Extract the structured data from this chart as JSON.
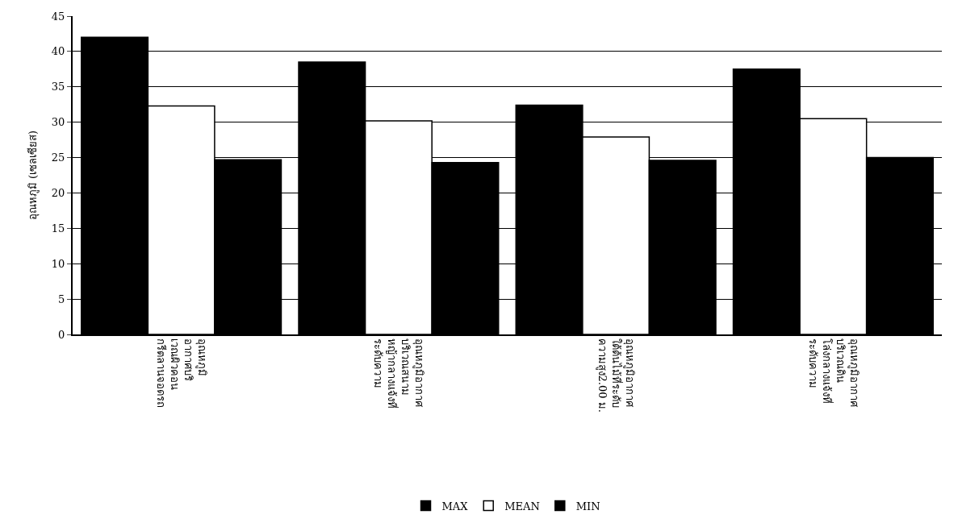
{
  "chart_data": {
    "type": "bar",
    "ylabel": "อุณหภูมิ (เซลเซียส)",
    "categories": [
      "อุณหภูมิ\nอากาศบริ\nเวณผิวคอน\nกรีตลานจอดรถ",
      "อุณหภูมิอากาศ\nบริเวณสนาม\nหญ้ากลางแจ้งที่\nระดับความ",
      "อุณหภูมิอากาศ\nใต้ต้นไม้ที่ระดับ\nความสูง2.00 ม.",
      "อุณหภูมิอากาศ\nบริเวณดิน\nโล่งกลางแจ้งที่\nระดับความ"
    ],
    "series": [
      {
        "name": "MAX",
        "color": "#000000",
        "values": [
          42,
          38.5,
          32.4,
          37.5
        ]
      },
      {
        "name": "MEAN",
        "color": "#ffffff",
        "values": [
          32.3,
          30.2,
          27.9,
          30.5
        ]
      },
      {
        "name": "MIN",
        "color": "#000000",
        "values": [
          24.7,
          24.3,
          24.6,
          25
        ]
      }
    ],
    "ylim": [
      0,
      45
    ],
    "yticks": [
      0,
      5,
      10,
      15,
      20,
      25,
      30,
      35,
      40,
      45
    ],
    "grid": "y",
    "legend": "bottom"
  }
}
